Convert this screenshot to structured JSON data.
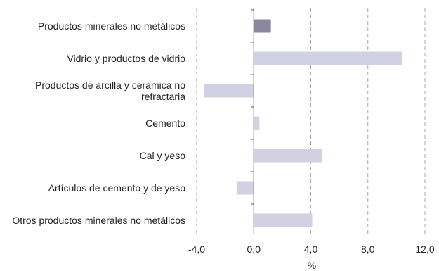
{
  "chart_data": {
    "type": "bar",
    "orientation": "horizontal",
    "categories": [
      "Productos minerales no metálicos",
      "Vidrio y productos de vidrio",
      "Productos de arcilla y cerámica no refractaria",
      "Cemento",
      "Cal y yeso",
      "Artículos de cemento y de yeso",
      "Otros productos minerales no metálicos"
    ],
    "values": [
      1.2,
      10.4,
      -3.5,
      0.4,
      4.8,
      -1.2,
      4.1
    ],
    "highlight_index": 0,
    "xlabel": "%",
    "xlim": [
      -4.0,
      12.0
    ],
    "xticks": [
      -4.0,
      0.0,
      4.0,
      8.0,
      12.0
    ],
    "xtick_labels": [
      "-4,0",
      "0,0",
      "4,0",
      "8,0",
      "12,0"
    ],
    "grid": "vertical-dashed",
    "colors": {
      "highlight": "#8a879e",
      "bar": "#d2d1e4",
      "grid": "#a8a8a8",
      "axis": "#555555"
    }
  }
}
